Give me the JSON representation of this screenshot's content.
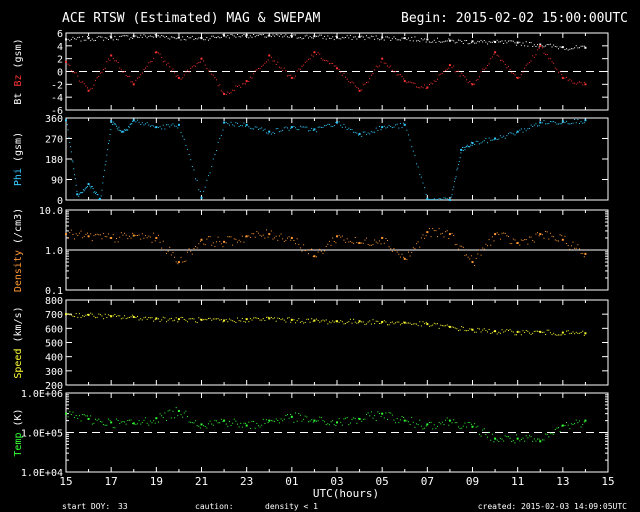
{
  "header": {
    "title": "ACE RTSW (Estimated) MAG & SWEPAM",
    "begin": "Begin: 2015-02-02 15:00:00UTC"
  },
  "footer": {
    "start_doy_label": "start DOY:",
    "start_doy_value": "33",
    "caution_label": "caution:",
    "caution_text": "density < 1",
    "created": "created: 2015-02-03 14:09:05UTC",
    "caution_color": "#ff9900"
  },
  "chart_data": [
    {
      "type": "scatter",
      "panel": "mag",
      "ylabel_parts": [
        "Bt",
        "Bz",
        "(gsm)"
      ],
      "ylim": [
        -6,
        6
      ],
      "yticks": [
        "6",
        "4",
        "2",
        "0",
        "-2",
        "-4",
        "-6"
      ],
      "dashed_ref": 0,
      "series": [
        {
          "name": "Bt",
          "color": "#ffffff",
          "x": [
            15,
            16,
            17,
            18,
            19,
            20,
            21,
            22,
            23,
            24,
            25,
            26,
            27,
            28,
            29,
            30,
            31,
            32,
            33,
            34,
            35,
            36,
            37,
            38
          ],
          "values": [
            5.0,
            5.2,
            5.3,
            5.5,
            5.6,
            5.3,
            5.2,
            5.6,
            5.7,
            5.6,
            5.5,
            5.5,
            5.3,
            5.4,
            5.3,
            5.2,
            5.0,
            4.8,
            4.7,
            4.6,
            4.5,
            4.2,
            3.8,
            3.7
          ]
        },
        {
          "name": "Bz",
          "color": "#ff3333",
          "x": [
            15,
            16,
            17,
            18,
            19,
            20,
            21,
            22,
            23,
            24,
            25,
            26,
            27,
            28,
            29,
            30,
            31,
            32,
            33,
            34,
            35,
            36,
            37,
            38
          ],
          "values": [
            1.5,
            -3.0,
            2.5,
            -2.0,
            3.0,
            -1.0,
            2.0,
            -3.5,
            -1.5,
            2.5,
            -1.0,
            3.0,
            0.5,
            -3.0,
            2.0,
            -1.5,
            -2.5,
            1.0,
            -2.0,
            3.0,
            -1.0,
            4.0,
            -1.0,
            -2.0
          ]
        }
      ]
    },
    {
      "type": "scatter",
      "panel": "phi",
      "ylabel_parts": [
        "Phi",
        "(gsm)"
      ],
      "ylim": [
        0,
        360
      ],
      "yticks": [
        "360",
        "270",
        "180",
        "90",
        "0"
      ],
      "series": [
        {
          "name": "Phi",
          "color": "#33ccff",
          "x": [
            15,
            15.5,
            16,
            16.5,
            17,
            17.5,
            18,
            19,
            20,
            21,
            22,
            23,
            24,
            25,
            26,
            27,
            28,
            29,
            30,
            31,
            32,
            32.5,
            33,
            34,
            35,
            36,
            37,
            38
          ],
          "values": [
            350,
            25,
            70,
            5,
            345,
            300,
            350,
            320,
            330,
            10,
            340,
            330,
            300,
            320,
            310,
            340,
            290,
            320,
            330,
            5,
            0,
            220,
            250,
            270,
            300,
            340,
            345,
            350
          ]
        }
      ]
    },
    {
      "type": "scatter",
      "panel": "density",
      "ylabel_parts": [
        "Density",
        "(/cm3)"
      ],
      "ylim": [
        0.1,
        10
      ],
      "yscale": "log",
      "yticks": [
        "10.0",
        "1.0",
        "0.1"
      ],
      "solid_ref": 1,
      "series": [
        {
          "name": "Density",
          "color": "#ff9933",
          "x": [
            15,
            16,
            17,
            18,
            19,
            20,
            21,
            22,
            23,
            24,
            25,
            26,
            27,
            28,
            29,
            30,
            31,
            32,
            33,
            34,
            35,
            36,
            37,
            38
          ],
          "values": [
            2.5,
            2.2,
            2.0,
            2.3,
            2.0,
            0.5,
            1.8,
            1.6,
            2.2,
            2.5,
            2.0,
            0.7,
            2.2,
            1.5,
            2.0,
            0.6,
            2.8,
            2.5,
            0.5,
            2.5,
            1.5,
            2.5,
            1.8,
            0.8
          ]
        }
      ]
    },
    {
      "type": "scatter",
      "panel": "speed",
      "ylabel_parts": [
        "Speed",
        "(km/s)"
      ],
      "ylim": [
        200,
        800
      ],
      "yticks": [
        "800",
        "700",
        "600",
        "500",
        "400",
        "300",
        "200"
      ],
      "series": [
        {
          "name": "Speed",
          "color": "#ffff33",
          "x": [
            15,
            16,
            17,
            18,
            19,
            20,
            21,
            22,
            23,
            24,
            25,
            26,
            27,
            28,
            29,
            30,
            31,
            32,
            33,
            34,
            35,
            36,
            37,
            38
          ],
          "values": [
            700,
            695,
            685,
            680,
            670,
            665,
            660,
            655,
            665,
            670,
            660,
            655,
            650,
            650,
            645,
            640,
            630,
            610,
            590,
            580,
            575,
            575,
            570,
            565
          ]
        }
      ]
    },
    {
      "type": "scatter",
      "panel": "temp",
      "ylabel_parts": [
        "Temp",
        "(K)"
      ],
      "ylim": [
        10000,
        1000000
      ],
      "yscale": "log",
      "yticks": [
        "1.0E+06",
        "1.0E+05",
        "1.0E+04"
      ],
      "dashed_ref": 100000,
      "series": [
        {
          "name": "Temp",
          "color": "#33ff33",
          "x": [
            15,
            16,
            17,
            18,
            19,
            20,
            21,
            22,
            23,
            24,
            25,
            26,
            27,
            28,
            29,
            30,
            31,
            32,
            33,
            34,
            35,
            36,
            37,
            38
          ],
          "values": [
            300000,
            220000,
            180000,
            170000,
            230000,
            350000,
            160000,
            200000,
            150000,
            200000,
            250000,
            200000,
            180000,
            220000,
            300000,
            200000,
            160000,
            200000,
            140000,
            70000,
            70000,
            60000,
            150000,
            200000
          ]
        }
      ]
    }
  ],
  "x_axis": {
    "label": "UTC(hours)",
    "ticks": [
      "15",
      "17",
      "19",
      "21",
      "23",
      "01",
      "03",
      "05",
      "07",
      "09",
      "11",
      "13",
      "15"
    ],
    "range": [
      15,
      39
    ]
  }
}
